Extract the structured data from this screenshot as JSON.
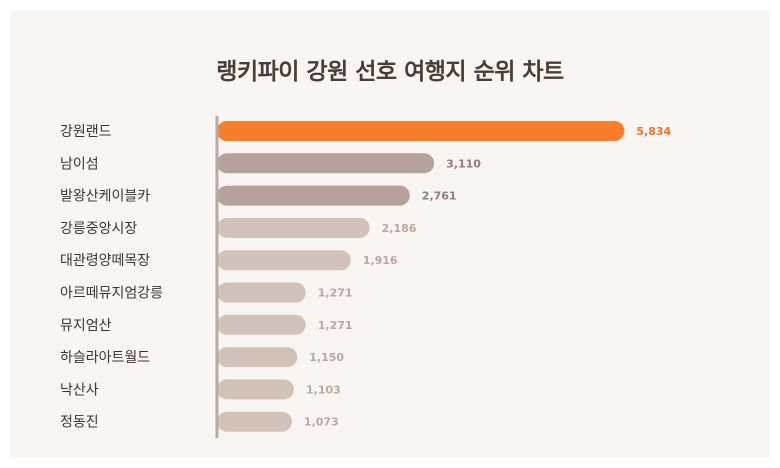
{
  "chart_data": {
    "type": "bar",
    "orientation": "horizontal",
    "title": "랭키파이 강원 선호 여행지 순위 차트",
    "categories": [
      "강원랜드",
      "남이섬",
      "발왕산케이블카",
      "강릉중앙시장",
      "대관령양떼목장",
      "아르떼뮤지엄강릉",
      "뮤지엄산",
      "하슬라아트월드",
      "낙산사",
      "정동진"
    ],
    "values": [
      5834,
      3110,
      2761,
      2186,
      1916,
      1271,
      1271,
      1150,
      1103,
      1073
    ],
    "value_labels": [
      "5,834",
      "3,110",
      "2,761",
      "2,186",
      "1,916",
      "1,271",
      "1,271",
      "1,150",
      "1,103",
      "1,073"
    ],
    "xlim": [
      0,
      6000
    ],
    "grid": false,
    "colors": {
      "highlight": "#f97e2b",
      "dark": "#b5a29b",
      "light": "#d2c2ba",
      "highlight_label": "#e8772b",
      "dark_label": "#8f7e78",
      "light_label": "#b8a8a1",
      "axis": "#b8aaa4"
    }
  }
}
